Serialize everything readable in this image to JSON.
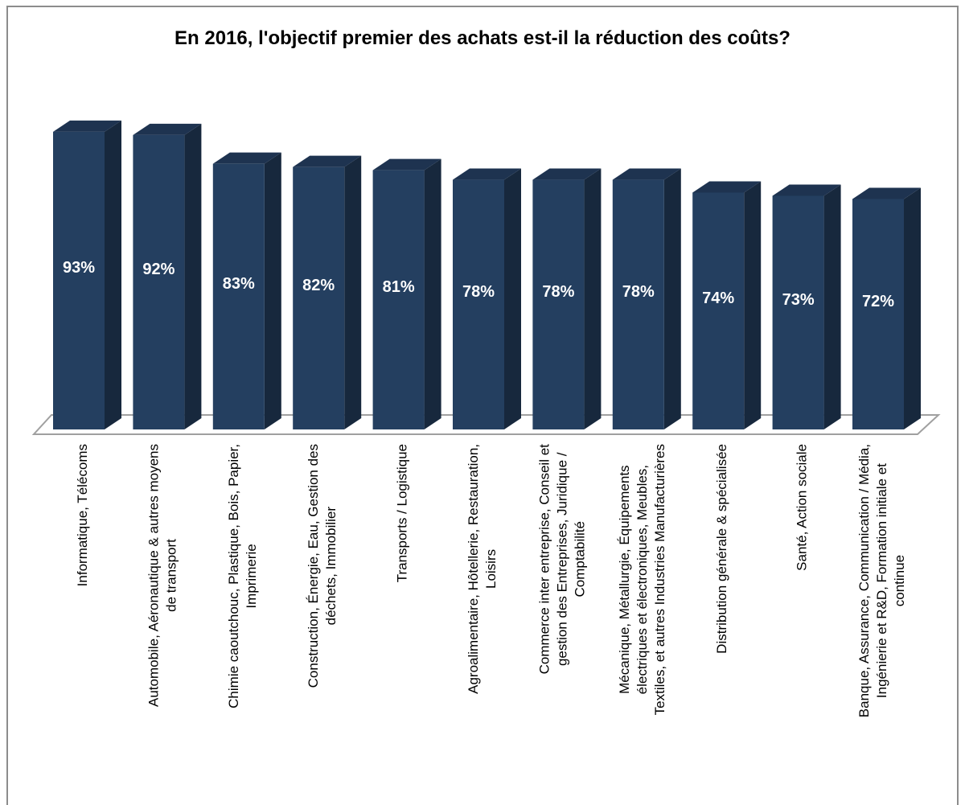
{
  "chart_data": {
    "type": "bar",
    "title": "En 2016, l'objectif premier des achats est-il la réduction des coûts?",
    "xlabel": "",
    "ylabel": "",
    "ylim": [
      0,
      100
    ],
    "grid": false,
    "legend": "none",
    "value_suffix": "%",
    "categories": [
      [
        "Informatique, Télécoms"
      ],
      [
        "Automobile, Aéronautique & autres moyens",
        "de transport"
      ],
      [
        "Chimie caoutchouc, Plastique, Bois, Papier,",
        "Imprimerie"
      ],
      [
        "Construction, Énergie, Eau, Gestion des",
        "déchets, Immobilier"
      ],
      [
        "Transports / Logistique"
      ],
      [
        "Agroalimentaire, Hôtellerie, Restauration,",
        "Loisirs"
      ],
      [
        "Commerce inter entreprise, Conseil et",
        "gestion des Entreprises, Juridique /",
        "Comptabilité"
      ],
      [
        "Mécanique, Métallurgie, Équipements",
        "électriques et électroniques, Meubles,",
        "Textiles, et autres Industries Manufacturières"
      ],
      [
        "Distribution générale & spécialisée"
      ],
      [
        "Santé, Action sociale"
      ],
      [
        "Banque, Assurance, Communication / Média,",
        "Ingénierie et R&D, Formation initiale et",
        "continue"
      ]
    ],
    "values": [
      93,
      92,
      83,
      82,
      81,
      78,
      78,
      78,
      74,
      73,
      72
    ],
    "colors": {
      "bar_front": "#243f60",
      "bar_side": "#17283d",
      "bar_top": "#1e3350",
      "floor_stroke": "#a0a0a0"
    }
  }
}
